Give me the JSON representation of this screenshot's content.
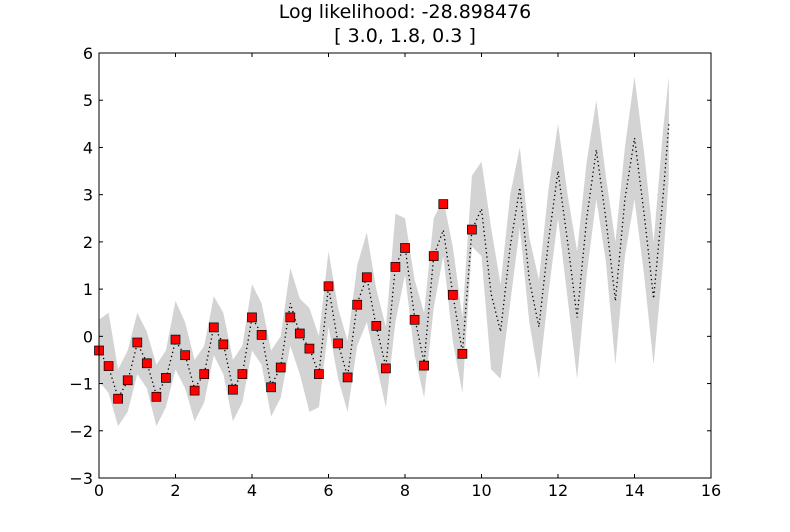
{
  "chart_data": {
    "type": "line",
    "title": "Log likelihood: -28.898476",
    "subtitle": "[ 3.0, 1.8, 0.3 ]",
    "xlabel": "",
    "ylabel": "",
    "xlim": [
      0,
      16
    ],
    "ylim": [
      -3,
      6
    ],
    "xticks": [
      0,
      2,
      4,
      6,
      8,
      10,
      12,
      14,
      16
    ],
    "yticks": [
      -3,
      -2,
      -1,
      0,
      1,
      2,
      3,
      4,
      5,
      6
    ],
    "grid": false,
    "legend": "none",
    "colors": {
      "points": "#ff0000",
      "point_edge": "#000000",
      "mean": "#000000",
      "band": "#d3d3d3"
    },
    "observations": {
      "x": [
        0,
        0.25,
        0.5,
        0.75,
        1.0,
        1.25,
        1.5,
        1.75,
        2.0,
        2.25,
        2.5,
        2.75,
        3.0,
        3.25,
        3.5,
        3.75,
        4.0,
        4.25,
        4.5,
        4.75,
        5.0,
        5.25,
        5.5,
        5.75,
        6.0,
        6.25,
        6.5,
        6.75,
        7.0,
        7.25,
        7.5,
        7.75,
        8.0,
        8.25,
        8.5,
        8.75,
        9.0,
        9.25,
        9.5,
        9.75
      ],
      "y": [
        -0.3,
        -0.63,
        -1.32,
        -0.93,
        -0.13,
        -0.57,
        -1.28,
        -0.88,
        -0.07,
        -0.4,
        -1.15,
        -0.8,
        0.19,
        -0.17,
        -1.13,
        -0.8,
        0.4,
        0.03,
        -1.08,
        -0.66,
        0.4,
        0.06,
        -0.26,
        -0.8,
        1.06,
        -0.15,
        -0.87,
        0.67,
        1.25,
        0.22,
        -0.68,
        1.47,
        1.87,
        0.35,
        -0.62,
        1.7,
        2.8,
        0.88,
        -0.37,
        2.26
      ]
    },
    "prediction": {
      "x": [
        0,
        0.25,
        0.5,
        0.75,
        1.0,
        1.25,
        1.5,
        1.75,
        2.0,
        2.25,
        2.5,
        2.75,
        3.0,
        3.25,
        3.5,
        3.75,
        4.0,
        4.25,
        4.5,
        4.75,
        5.0,
        5.25,
        5.5,
        5.75,
        6.0,
        6.25,
        6.5,
        6.75,
        7.0,
        7.25,
        7.5,
        7.75,
        8.0,
        8.25,
        8.5,
        8.75,
        9.0,
        9.25,
        9.5,
        9.75,
        10.0,
        10.25,
        10.5,
        10.75,
        11.0,
        11.25,
        11.5,
        11.75,
        12.0,
        12.25,
        12.5,
        12.75,
        13.0,
        13.25,
        13.5,
        13.75,
        14.0,
        14.25,
        14.5,
        14.75,
        14.9
      ],
      "mean": [
        -0.3,
        -0.65,
        -1.3,
        -0.95,
        -0.15,
        -0.55,
        -1.25,
        -0.9,
        -0.1,
        -0.4,
        -1.1,
        -0.8,
        0.2,
        -0.15,
        -1.1,
        -0.8,
        0.4,
        0.05,
        -1.05,
        -0.65,
        0.7,
        0.05,
        -0.25,
        -0.8,
        1.05,
        -0.15,
        -0.85,
        0.7,
        1.25,
        0.2,
        -0.65,
        1.5,
        1.9,
        0.4,
        -0.55,
        1.7,
        2.25,
        0.9,
        -0.35,
        2.25,
        2.7,
        0.9,
        0.1,
        1.9,
        3.15,
        1.2,
        0.2,
        2.0,
        3.5,
        2.0,
        0.4,
        2.5,
        3.95,
        2.5,
        0.75,
        2.9,
        4.2,
        2.6,
        0.8,
        3.0,
        4.5
      ],
      "lower": [
        -0.95,
        -1.2,
        -1.9,
        -1.6,
        -0.8,
        -1.1,
        -1.9,
        -1.5,
        -0.7,
        -1.1,
        -1.8,
        -1.4,
        -0.4,
        -0.8,
        -1.8,
        -1.4,
        -0.3,
        -0.6,
        -1.7,
        -1.3,
        -0.2,
        -0.8,
        -1.6,
        -1.5,
        0.2,
        -0.9,
        -1.6,
        -0.2,
        0.3,
        -0.6,
        -1.5,
        0.3,
        1.3,
        -0.4,
        -1.3,
        0.6,
        1.7,
        -0.1,
        -1.2,
        1.9,
        1.7,
        -0.7,
        -0.9,
        0.7,
        2.3,
        0.3,
        -0.9,
        0.9,
        2.5,
        0.8,
        -0.9,
        1.3,
        2.9,
        1.6,
        -0.6,
        1.7,
        2.9,
        1.3,
        -0.6,
        1.6,
        3.4
      ],
      "upper": [
        0.35,
        0.5,
        -0.7,
        -0.3,
        0.5,
        0.1,
        -0.6,
        -0.3,
        0.75,
        0.3,
        -0.5,
        -0.2,
        0.85,
        0.5,
        -0.5,
        -0.2,
        1.1,
        0.7,
        -0.3,
        0.0,
        1.45,
        0.8,
        0.6,
        0.0,
        1.8,
        0.6,
        -0.1,
        1.5,
        2.2,
        1.0,
        0.2,
        2.6,
        2.5,
        1.2,
        0.5,
        2.5,
        2.9,
        1.9,
        0.4,
        3.4,
        3.7,
        2.3,
        1.1,
        3.0,
        4.0,
        2.1,
        1.2,
        3.1,
        4.5,
        3.0,
        1.8,
        3.7,
        5.0,
        3.4,
        2.0,
        4.0,
        5.5,
        3.9,
        2.0,
        4.4,
        5.5
      ]
    }
  }
}
